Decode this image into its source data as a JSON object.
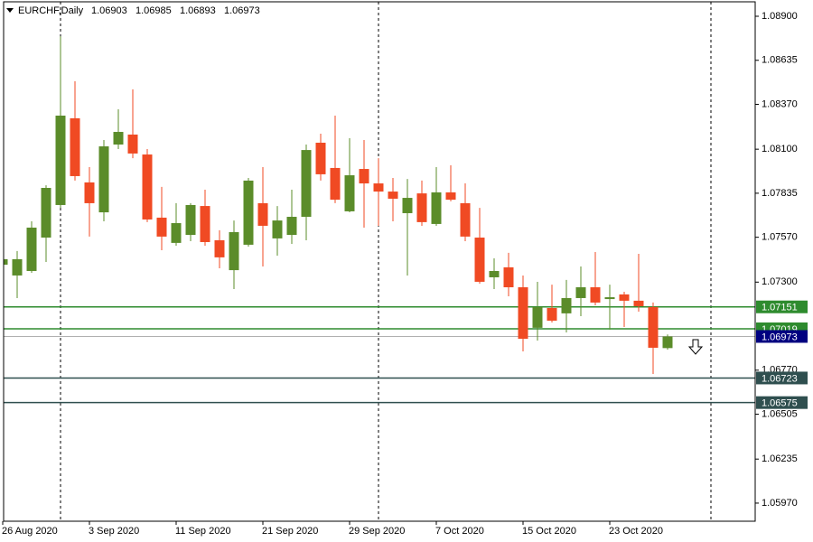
{
  "chart_data": {
    "type": "candlestick",
    "title": "EURCHF,Daily",
    "categories": [
      "26 Aug 2020",
      null,
      null,
      null,
      null,
      null,
      "3 Sep 2020",
      null,
      null,
      null,
      null,
      null,
      "11 Sep 2020",
      null,
      null,
      null,
      null,
      null,
      "21 Sep 2020",
      null,
      null,
      null,
      null,
      null,
      "29 Sep 2020",
      null,
      null,
      null,
      null,
      null,
      "7 Oct 2020",
      null,
      null,
      null,
      null,
      null,
      "15 Oct 2020",
      null,
      null,
      null,
      null,
      null,
      "23 Oct 2020",
      null,
      null,
      null,
      null
    ],
    "open": [
      1.07405,
      1.0734,
      1.07367,
      1.07568,
      1.07764,
      1.08286,
      1.079,
      1.0772,
      1.08128,
      1.08188,
      1.08068,
      1.07688,
      1.07536,
      1.07584,
      1.07758,
      1.07552,
      1.07372,
      1.07525,
      1.07775,
      1.07563,
      1.07584,
      1.07693,
      1.08139,
      1.07987,
      1.07726,
      1.07981,
      1.07894,
      1.07845,
      1.07715,
      1.07834,
      1.0765,
      1.0784,
      1.07775,
      1.07568,
      1.07329,
      1.07389,
      1.07269,
      1.07025,
      1.07144,
      1.07112,
      1.07204,
      1.07269,
      1.07198,
      1.07226,
      1.07188,
      1.0715,
      1.06903
    ],
    "high": [
      1.07584,
      1.07487,
      1.07666,
      1.07883,
      1.0878,
      1.08509,
      1.07992,
      1.08155,
      1.0834,
      1.0846,
      1.08101,
      1.07873,
      1.07775,
      1.07775,
      1.07856,
      1.07612,
      1.07671,
      1.07927,
      1.07992,
      1.07758,
      1.07856,
      1.08128,
      1.08193,
      1.08302,
      1.08166,
      1.08155,
      1.08046,
      1.07927,
      1.07921,
      1.07911,
      1.07992,
      1.08003,
      1.07894,
      1.07747,
      1.07443,
      1.07476,
      1.0734,
      1.07302,
      1.07285,
      1.07313,
      1.07394,
      1.07481,
      1.07285,
      1.07242,
      1.0747,
      1.07177,
      1.06985
    ],
    "low": [
      1.07313,
      1.07204,
      1.07356,
      1.07421,
      1.07747,
      1.07911,
      1.07574,
      1.07666,
      1.08101,
      1.08046,
      1.07661,
      1.07492,
      1.07519,
      1.07546,
      1.07519,
      1.07383,
      1.07258,
      1.07514,
      1.07394,
      1.07459,
      1.0753,
      1.07552,
      1.07911,
      1.07775,
      1.0772,
      1.07628,
      1.07639,
      1.07666,
      1.0734,
      1.07639,
      1.07639,
      1.07786,
      1.07546,
      1.07291,
      1.07258,
      1.07215,
      1.06883,
      1.06948,
      1.07057,
      1.06997,
      1.07095,
      1.0716,
      1.07014,
      1.0703,
      1.07122,
      1.06747,
      1.06893
    ],
    "close": [
      1.07438,
      1.07438,
      1.07628,
      1.07867,
      1.08302,
      1.07938,
      1.07775,
      1.08117,
      1.08204,
      1.08074,
      1.07677,
      1.07574,
      1.07655,
      1.07764,
      1.07541,
      1.07449,
      1.07601,
      1.07911,
      1.07639,
      1.07671,
      1.07693,
      1.08095,
      1.07949,
      1.07796,
      1.07943,
      1.07894,
      1.07845,
      1.07802,
      1.07807,
      1.07661,
      1.0784,
      1.07796,
      1.07574,
      1.07302,
      1.07367,
      1.07269,
      1.06959,
      1.0715,
      1.07068,
      1.07204,
      1.07269,
      1.07177,
      1.07209,
      1.07188,
      1.07155,
      1.06905,
      1.06973
    ],
    "up_color": "#5b8c2a",
    "down_color": "#f04a23",
    "ylim": [
      1.05861,
      1.08987
    ],
    "yticks": [
      {
        "value": 1.089,
        "label": "1.08900"
      },
      1.08635,
      {
        "value": 1.0837,
        "label": "1.08370"
      },
      {
        "value": 1.081,
        "label": "1.08100"
      },
      1.07835,
      {
        "value": 1.0757,
        "label": "1.07570"
      },
      {
        "value": 1.073,
        "label": "1.07300"
      },
      {
        "value": 1.0677,
        "label": "1.06770"
      },
      1.06505,
      1.06235,
      {
        "value": 1.0597,
        "label": "1.05970"
      }
    ],
    "levels": [
      {
        "value": 1.07151,
        "color": "#2e8b2e"
      },
      {
        "value": 1.07019,
        "color": "#2e8b2e"
      },
      {
        "value": 1.06723,
        "color": "#2f4f4f"
      },
      {
        "value": 1.06575,
        "color": "#2f4f4f"
      }
    ],
    "price_line_color": "#b0b0b0",
    "price_label_color": "#000080"
  }
}
